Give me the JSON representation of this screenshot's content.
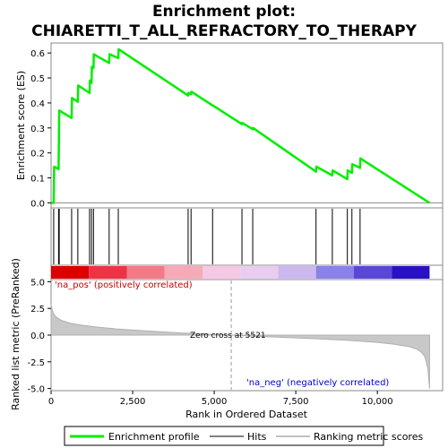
{
  "chart_data": {
    "type": "line",
    "title_line1": "Enrichment plot:",
    "title_line2": "CHIARETTI_T_ALL_REFRACTORY_TO_THERAPY",
    "x_label": "Rank in Ordered Dataset",
    "es_axis_label": "Enrichment score (ES)",
    "metric_axis_label": "Ranked list metric (PreRanked)",
    "xlim": [
      0,
      12000
    ],
    "es_ylim": [
      -0.02,
      0.64
    ],
    "metric_ylim": [
      -5.2,
      5.2
    ],
    "x_ticks": [
      0,
      2500,
      5000,
      7500,
      10000
    ],
    "x_tick_labels": [
      "0",
      "2,500",
      "5,000",
      "7,500",
      "10,000"
    ],
    "es_ticks": [
      0.0,
      0.1,
      0.2,
      0.3,
      0.4,
      0.5,
      0.6
    ],
    "es_tick_labels": [
      "0.0",
      "0.1",
      "0.2",
      "0.3",
      "0.4",
      "0.5",
      "0.6"
    ],
    "metric_ticks": [
      5.0,
      2.5,
      0.0,
      -2.5,
      -5.0
    ],
    "metric_tick_labels": [
      "5.0",
      "2.5",
      "0.0",
      "-2.5",
      "-5.0"
    ],
    "series": [
      {
        "name": "Enrichment profile",
        "color": "#00ee00",
        "x": [
          0,
          80,
          95,
          230,
          240,
          250,
          630,
          640,
          820,
          830,
          1180,
          1190,
          1240,
          1250,
          1300,
          1310,
          1780,
          1790,
          2060,
          2070,
          4200,
          4210,
          4290,
          4300,
          4950,
          4960,
          5850,
          5860,
          6180,
          6190,
          8120,
          8130,
          8620,
          8630,
          9080,
          9090,
          9220,
          9230,
          9470,
          9480,
          11600
        ],
        "y": [
          0.0,
          0.0,
          0.145,
          0.135,
          0.25,
          0.37,
          0.34,
          0.42,
          0.405,
          0.47,
          0.44,
          0.49,
          0.48,
          0.545,
          0.54,
          0.595,
          0.56,
          0.595,
          0.58,
          0.615,
          0.43,
          0.44,
          0.435,
          0.445,
          0.39,
          0.39,
          0.315,
          0.32,
          0.295,
          0.3,
          0.125,
          0.145,
          0.11,
          0.13,
          0.095,
          0.13,
          0.12,
          0.155,
          0.14,
          0.178,
          0.0
        ]
      }
    ],
    "hits": [
      80,
      230,
      250,
      630,
      820,
      1180,
      1240,
      1300,
      1780,
      2060,
      4200,
      4290,
      4950,
      5850,
      6180,
      8120,
      8620,
      9080,
      9220,
      9470
    ],
    "zero_cross": 5521,
    "zero_cross_text": "Zero cross at 5521",
    "pos_label": "'na_pos' (positively correlated)",
    "neg_label": "'na_neg' (negatively correlated)",
    "metric_curve": {
      "x": [
        0,
        30,
        80,
        150,
        300,
        600,
        1000,
        1500,
        2000,
        3000,
        4000,
        5000,
        5521,
        6000,
        7000,
        8000,
        9000,
        10000,
        10500,
        11000,
        11200,
        11350,
        11450,
        11500,
        11550,
        11600
      ],
      "y": [
        2.9,
        2.4,
        2.0,
        1.7,
        1.4,
        1.1,
        0.9,
        0.72,
        0.58,
        0.38,
        0.2,
        0.06,
        0.0,
        -0.07,
        -0.2,
        -0.33,
        -0.47,
        -0.68,
        -0.85,
        -1.1,
        -1.3,
        -1.6,
        -2.0,
        -2.5,
        -3.2,
        -5.0
      ]
    },
    "heat_bar_colors": [
      "#dd0000",
      "#ee3344",
      "#f27a86",
      "#f5aab5",
      "#f7c8e3",
      "#e8cdf0",
      "#cbb8f0",
      "#8a82e6",
      "#5a47d8",
      "#2a10c4"
    ],
    "legend": {
      "items": [
        "Enrichment profile",
        "Hits",
        "Ranking metric scores"
      ],
      "colors": [
        "#00ee00",
        "#000000",
        "#c0c0c0"
      ]
    }
  }
}
